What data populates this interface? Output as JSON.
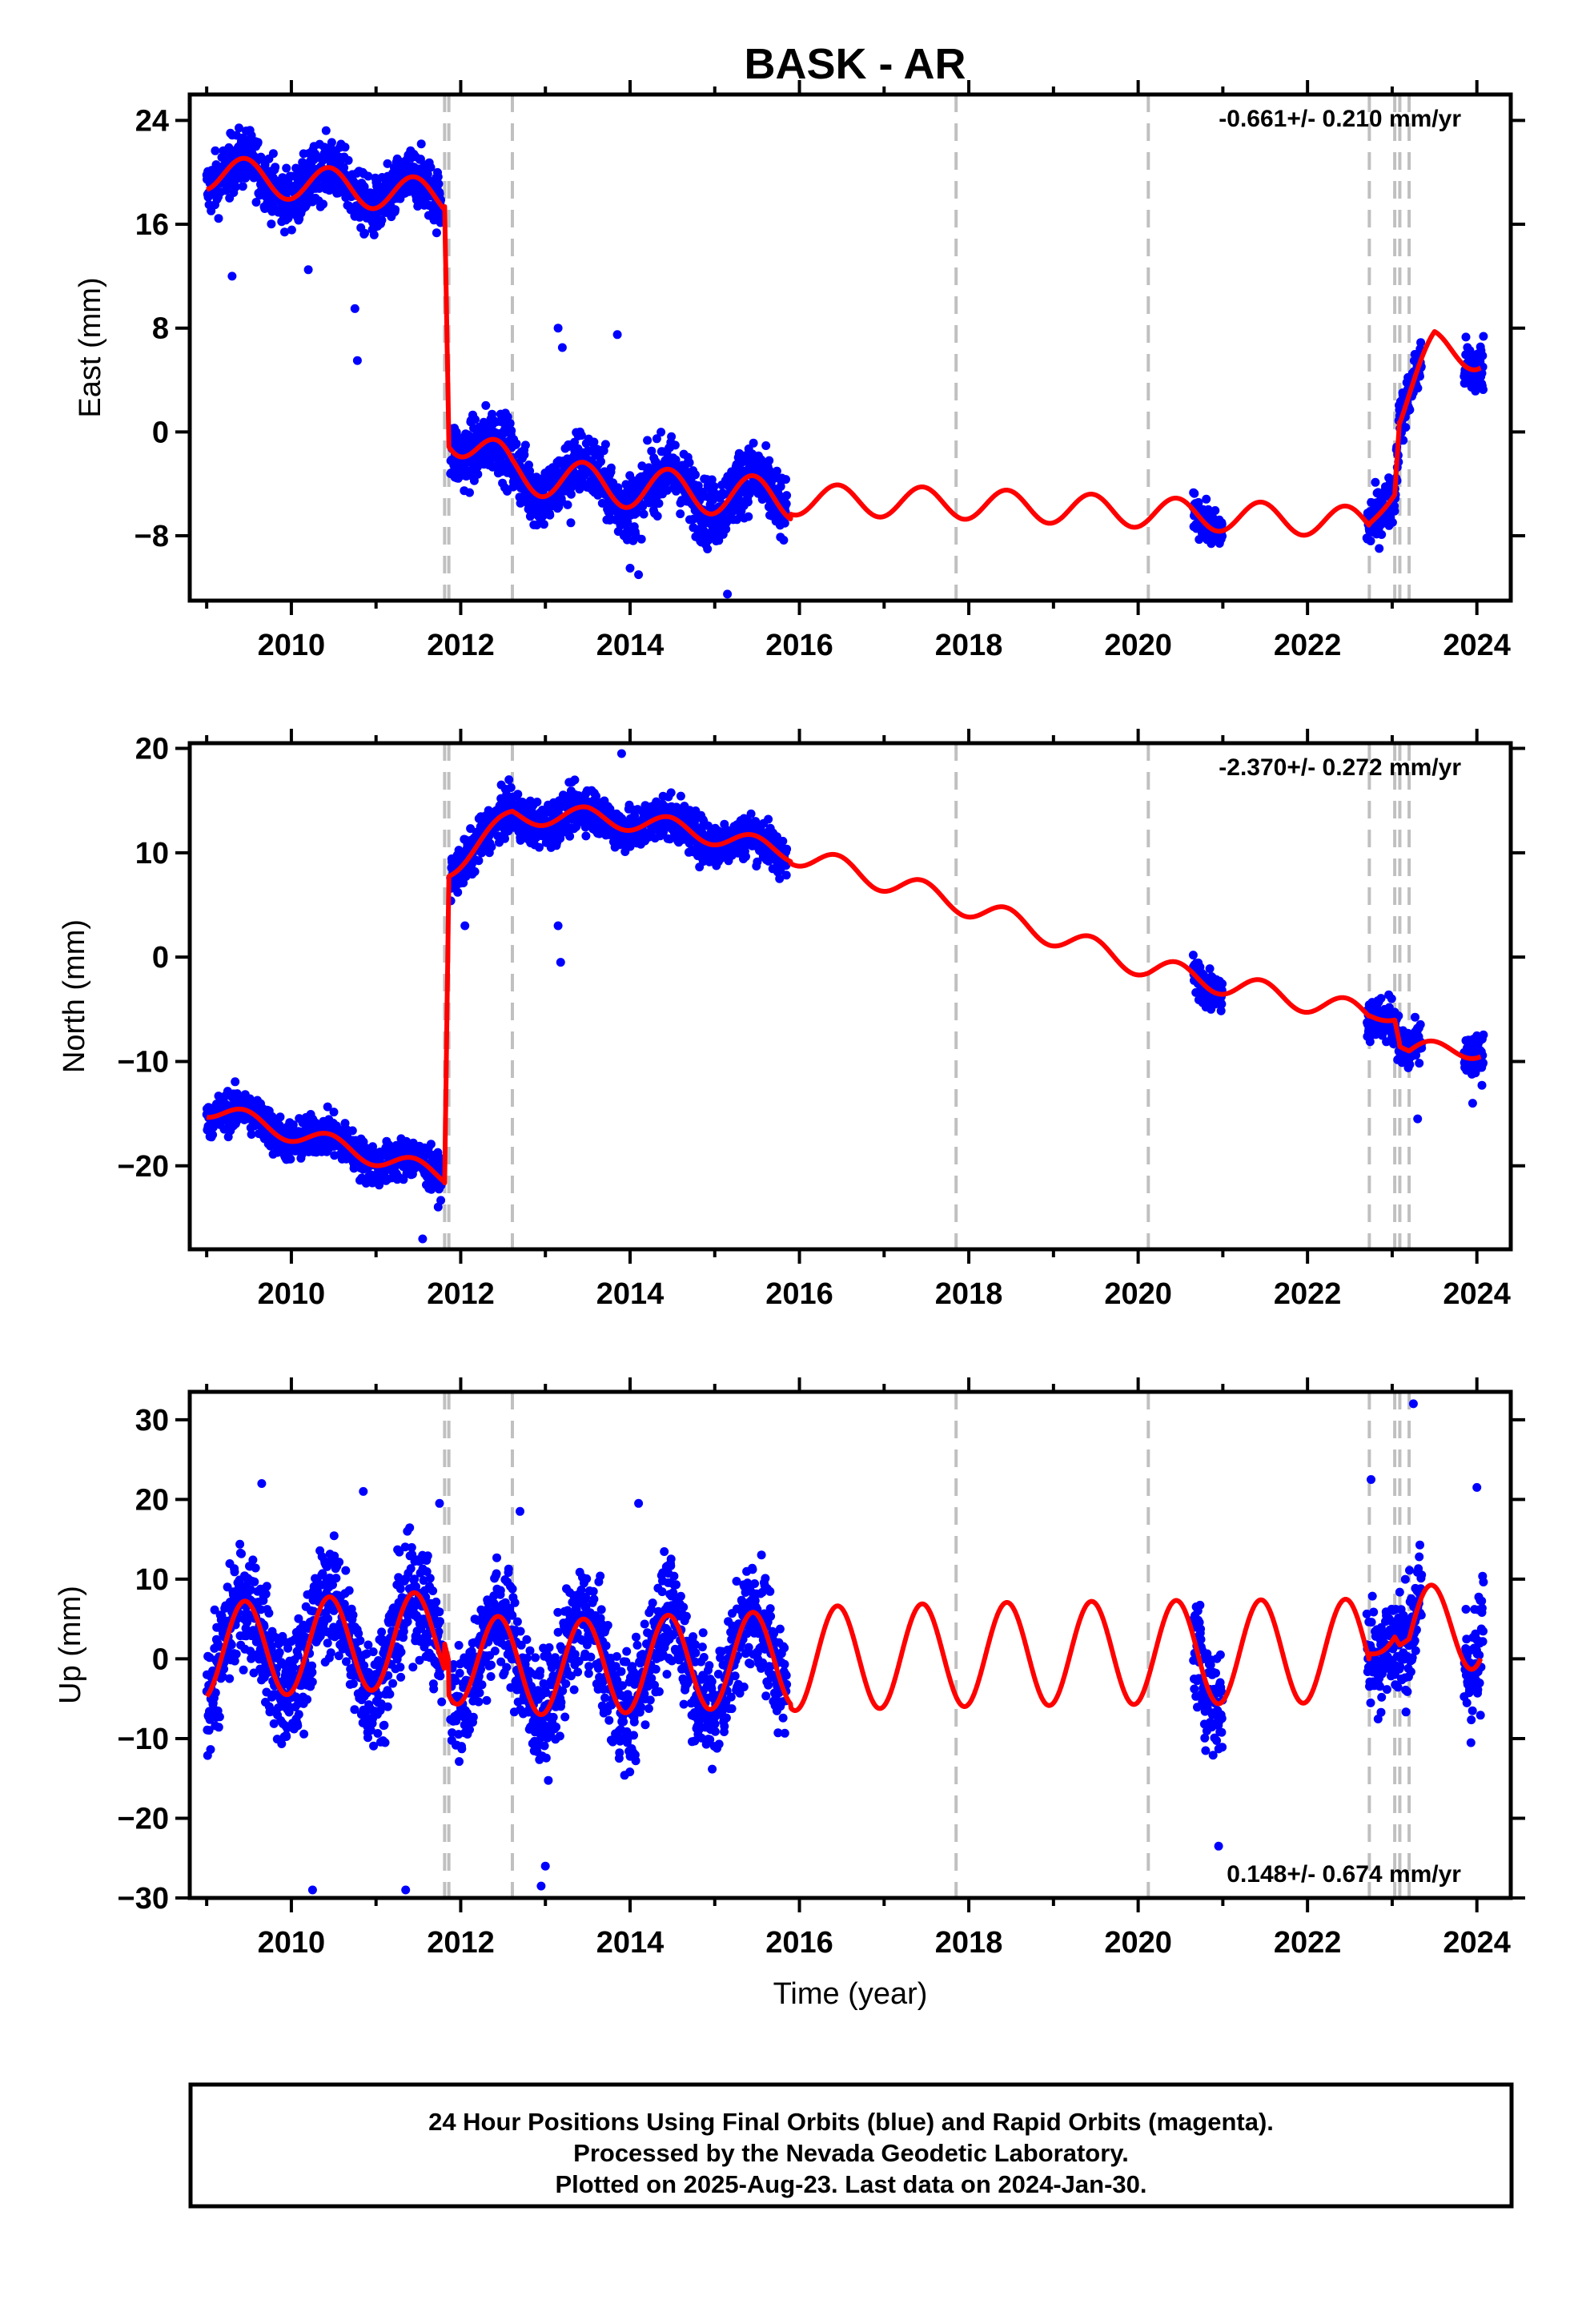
{
  "title": "BASK - AR",
  "x_axis": {
    "label": "Time (year)",
    "ticks": [
      "2010",
      "2012",
      "2014",
      "2016",
      "2018",
      "2020",
      "2022",
      "2024"
    ]
  },
  "chart_data": [
    {
      "type": "scatter",
      "panel": "east",
      "ylabel": "East (mm)",
      "xlim": [
        2008.8,
        2024.4
      ],
      "ylim": [
        -13,
        26
      ],
      "yticks": [
        24,
        16,
        8,
        0,
        -8
      ],
      "ytick_labels": [
        "24",
        "16",
        "8",
        "0",
        "−8"
      ],
      "rate_text": "-0.661+/- 0.210 mm/yr",
      "rate_position": "top-right",
      "event_lines": [
        2011.81,
        2011.86,
        2012.61,
        2017.85,
        2020.12,
        2022.73,
        2023.03,
        2023.09,
        2023.2
      ],
      "series": [
        {
          "kind": "scatter",
          "color": "#0000ff",
          "segments": [
            {
              "range": [
                2009.0,
                2011.78
              ],
              "amp": 1.6,
              "spread": 1.6
            },
            {
              "range": [
                2011.88,
                2015.85
              ],
              "amp": 2.2,
              "spread": 1.8
            },
            {
              "range": [
                2020.65,
                2021.0
              ],
              "amp": 0.5,
              "spread": 1.0
            },
            {
              "range": [
                2022.7,
                2023.35
              ],
              "amp": 0.8,
              "spread": 1.4
            },
            {
              "range": [
                2023.85,
                2024.08
              ],
              "amp": 0.8,
              "spread": 1.5
            }
          ],
          "outliers": [
            [
              2009.3,
              12
            ],
            [
              2010.2,
              12.5
            ],
            [
              2010.75,
              9.5
            ],
            [
              2010.78,
              5.5
            ],
            [
              2013.15,
              8
            ],
            [
              2013.2,
              6.5
            ],
            [
              2013.85,
              7.5
            ],
            [
              2014.0,
              -10.5
            ],
            [
              2014.1,
              -11
            ],
            [
              2015.15,
              -12.5
            ],
            [
              2013.3,
              -7
            ]
          ]
        },
        {
          "kind": "line",
          "color": "#ff0000",
          "trend": [
            [
              2009.0,
              20.0
            ],
            [
              2011.81,
              18.0
            ],
            [
              2011.86,
              0.2
            ],
            [
              2012.61,
              -3.0
            ],
            [
              2013.5,
              -4.0
            ],
            [
              2014.5,
              -4.5
            ],
            [
              2015.9,
              -5.2
            ],
            [
              2017.85,
              -5.5
            ],
            [
              2020.12,
              -6.2
            ],
            [
              2022.73,
              -7.0
            ],
            [
              2023.03,
              -4.5
            ],
            [
              2023.09,
              1.5
            ],
            [
              2023.5,
              6.5
            ],
            [
              2024.05,
              6.0
            ]
          ],
          "seasonal": [
            [
              2009.0,
              2011.81,
              1.4
            ],
            [
              2011.86,
              2015.9,
              1.6
            ],
            [
              2015.9,
              2022.73,
              1.2
            ],
            [
              2022.73,
              2023.09,
              0.4
            ],
            [
              2023.09,
              2024.05,
              1.3
            ]
          ]
        }
      ]
    },
    {
      "type": "scatter",
      "panel": "north",
      "ylabel": "North (mm)",
      "xlim": [
        2008.8,
        2024.4
      ],
      "ylim": [
        -28,
        20.5
      ],
      "yticks": [
        20,
        10,
        0,
        -10,
        -20
      ],
      "ytick_labels": [
        "20",
        "10",
        "0",
        "−10",
        "−20"
      ],
      "rate_text": "-2.370+/- 0.272 mm/yr",
      "rate_position": "top-right",
      "event_lines": [
        2011.81,
        2011.86,
        2012.61,
        2017.85,
        2020.12,
        2022.73,
        2023.03,
        2023.09,
        2023.2
      ],
      "series": [
        {
          "kind": "scatter",
          "color": "#0000ff",
          "segments": [
            {
              "range": [
                2009.0,
                2011.78
              ],
              "amp": 1.0,
              "spread": 1.4
            },
            {
              "range": [
                2011.88,
                2015.85
              ],
              "amp": 1.2,
              "spread": 1.5
            },
            {
              "range": [
                2020.65,
                2021.0
              ],
              "amp": 0.5,
              "spread": 1.2
            },
            {
              "range": [
                2022.7,
                2023.35
              ],
              "amp": 0.8,
              "spread": 1.5
            },
            {
              "range": [
                2023.85,
                2024.08
              ],
              "amp": 0.8,
              "spread": 1.5
            }
          ],
          "outliers": [
            [
              2012.05,
              3
            ],
            [
              2013.15,
              3
            ],
            [
              2013.18,
              -0.5
            ],
            [
              2013.9,
              19.5
            ],
            [
              2011.55,
              -27
            ],
            [
              2023.3,
              -15.5
            ],
            [
              2023.95,
              -14
            ]
          ]
        },
        {
          "kind": "line",
          "color": "#ff0000",
          "trend": [
            [
              2009.0,
              -14.5
            ],
            [
              2011.81,
              -21.0
            ],
            [
              2011.86,
              8.5
            ],
            [
              2012.61,
              13.5
            ],
            [
              2013.5,
              13.5
            ],
            [
              2014.5,
              12.5
            ],
            [
              2015.9,
              10.0
            ],
            [
              2017.85,
              5.3
            ],
            [
              2020.12,
              -1.0
            ],
            [
              2022.73,
              -5.5
            ],
            [
              2023.03,
              -5.5
            ],
            [
              2023.09,
              -8.0
            ],
            [
              2023.2,
              -9.0
            ],
            [
              2024.05,
              -8.8
            ]
          ],
          "seasonal": [
            [
              2009.0,
              2011.81,
              0.9
            ],
            [
              2011.86,
              2015.9,
              0.9
            ],
            [
              2015.9,
              2022.73,
              1.1
            ],
            [
              2022.73,
              2023.09,
              0.6
            ],
            [
              2023.09,
              2024.05,
              0.9
            ]
          ]
        }
      ]
    },
    {
      "type": "scatter",
      "panel": "up",
      "ylabel": "Up (mm)",
      "xlim": [
        2008.8,
        2024.4
      ],
      "ylim": [
        -30,
        33.5
      ],
      "yticks": [
        30,
        20,
        10,
        0,
        -10,
        -20,
        -30
      ],
      "ytick_labels": [
        "30",
        "20",
        "10",
        "0",
        "−10",
        "−20",
        "−30"
      ],
      "rate_text": "0.148+/- 0.674 mm/yr",
      "rate_position": "bottom-right",
      "event_lines": [
        2011.81,
        2011.86,
        2012.61,
        2017.85,
        2020.12,
        2022.73,
        2023.03,
        2023.09,
        2023.2
      ],
      "series": [
        {
          "kind": "scatter",
          "color": "#0000ff",
          "segments": [
            {
              "range": [
                2009.0,
                2011.78
              ],
              "amp": 6.0,
              "spread": 5.0
            },
            {
              "range": [
                2011.88,
                2015.85
              ],
              "amp": 6.0,
              "spread": 5.0
            },
            {
              "range": [
                2020.65,
                2021.0
              ],
              "amp": 3.0,
              "spread": 5.0
            },
            {
              "range": [
                2022.7,
                2023.35
              ],
              "amp": 4.0,
              "spread": 5.0
            },
            {
              "range": [
                2023.85,
                2024.08
              ],
              "amp": 4.0,
              "spread": 6.0
            }
          ],
          "outliers": [
            [
              2010.25,
              -29
            ],
            [
              2011.35,
              -29
            ],
            [
              2012.95,
              -28.5
            ],
            [
              2013.0,
              -26
            ],
            [
              2020.95,
              -23.5
            ],
            [
              2023.25,
              32
            ],
            [
              2024.0,
              21.5
            ],
            [
              2009.65,
              22
            ],
            [
              2010.85,
              21
            ],
            [
              2014.1,
              19.5
            ],
            [
              2012.7,
              18.5
            ],
            [
              2011.75,
              19.5
            ],
            [
              2022.75,
              22.5
            ]
          ]
        },
        {
          "kind": "line",
          "color": "#ff0000",
          "trend": [
            [
              2009.0,
              1.0
            ],
            [
              2011.81,
              2.5
            ],
            [
              2011.86,
              0.5
            ],
            [
              2012.61,
              -1.0
            ],
            [
              2013.5,
              -1.0
            ],
            [
              2014.5,
              -0.5
            ],
            [
              2015.9,
              0.0
            ],
            [
              2017.85,
              0.5
            ],
            [
              2020.12,
              0.8
            ],
            [
              2022.73,
              1.0
            ],
            [
              2023.03,
              4.5
            ],
            [
              2023.09,
              3.0
            ],
            [
              2023.2,
              2.5
            ],
            [
              2024.05,
              5.0
            ]
          ],
          "seasonal": [
            [
              2009.0,
              2011.81,
              6.0
            ],
            [
              2011.86,
              2015.9,
              6.0
            ],
            [
              2015.9,
              2022.73,
              6.5
            ],
            [
              2022.73,
              2023.2,
              2.0
            ],
            [
              2023.2,
              2024.05,
              6.0
            ]
          ]
        }
      ]
    }
  ],
  "footer": {
    "line1": "24 Hour Positions Using Final Orbits (blue) and Rapid Orbits (magenta).",
    "line2": "Processed by the Nevada Geodetic Laboratory.",
    "line3": "Plotted on 2025-Aug-23. Last data on 2024-Jan-30."
  }
}
